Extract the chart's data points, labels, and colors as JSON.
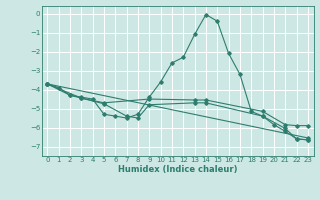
{
  "xlabel": "Humidex (Indice chaleur)",
  "background_color": "#cde8e4",
  "grid_color": "#ffffff",
  "line_color": "#2e7d6e",
  "xlim": [
    -0.5,
    23.5
  ],
  "ylim": [
    -7.5,
    0.4
  ],
  "xticks": [
    0,
    1,
    2,
    3,
    4,
    5,
    6,
    7,
    8,
    9,
    10,
    11,
    12,
    13,
    14,
    15,
    16,
    17,
    18,
    19,
    20,
    21,
    22,
    23
  ],
  "yticks": [
    0,
    -1,
    -2,
    -3,
    -4,
    -5,
    -6,
    -7
  ],
  "series": [
    [
      [
        0,
        -3.7
      ],
      [
        1,
        -3.9
      ],
      [
        2,
        -4.3
      ],
      [
        3,
        -4.4
      ],
      [
        4,
        -4.5
      ],
      [
        5,
        -5.3
      ],
      [
        6,
        -5.4
      ],
      [
        7,
        -5.5
      ],
      [
        8,
        -5.3
      ],
      [
        9,
        -4.4
      ],
      [
        10,
        -3.6
      ],
      [
        11,
        -2.6
      ],
      [
        12,
        -2.3
      ],
      [
        13,
        -1.1
      ],
      [
        14,
        -0.05
      ],
      [
        15,
        -0.4
      ],
      [
        16,
        -2.1
      ],
      [
        17,
        -3.2
      ],
      [
        18,
        -5.15
      ],
      [
        19,
        -5.4
      ],
      [
        20,
        -5.85
      ],
      [
        21,
        -6.2
      ],
      [
        22,
        -6.6
      ],
      [
        23,
        -6.65
      ]
    ],
    [
      [
        0,
        -3.7
      ],
      [
        2,
        -4.3
      ],
      [
        3,
        -4.45
      ],
      [
        5,
        -4.7
      ],
      [
        9,
        -4.5
      ],
      [
        13,
        -4.55
      ],
      [
        14,
        -4.55
      ],
      [
        19,
        -5.15
      ],
      [
        21,
        -5.85
      ],
      [
        22,
        -5.9
      ],
      [
        23,
        -5.9
      ]
    ],
    [
      [
        0,
        -3.7
      ],
      [
        3,
        -4.45
      ],
      [
        5,
        -4.75
      ],
      [
        7,
        -5.4
      ],
      [
        8,
        -5.5
      ],
      [
        9,
        -4.8
      ],
      [
        13,
        -4.7
      ],
      [
        14,
        -4.7
      ],
      [
        19,
        -5.4
      ],
      [
        21,
        -6.05
      ],
      [
        22,
        -6.6
      ],
      [
        23,
        -6.65
      ]
    ],
    [
      [
        0,
        -3.7
      ],
      [
        23,
        -6.55
      ]
    ]
  ]
}
